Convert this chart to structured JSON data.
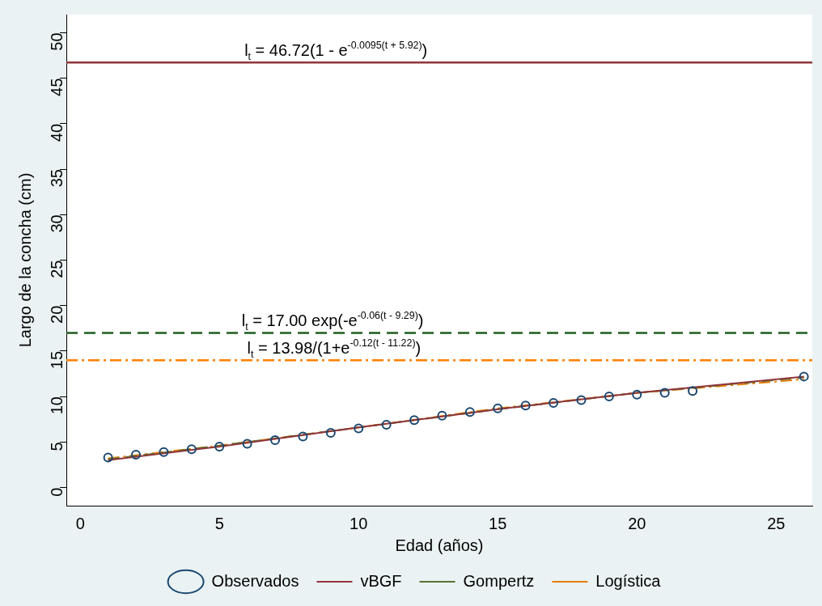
{
  "chart_data": {
    "type": "scatter",
    "xlabel": "Edad (años)",
    "ylabel": "Largo de la concha (cm)",
    "xlim": [
      -0.5,
      26.3
    ],
    "xticks": [
      0,
      5,
      10,
      15,
      20,
      25
    ],
    "ylim": [
      -2,
      52
    ],
    "yticks": [
      0,
      5,
      10,
      15,
      20,
      25,
      30,
      35,
      40,
      45,
      50
    ],
    "grid": false,
    "legend": "bottom",
    "series": [
      {
        "name": "Observados",
        "marker": "circle",
        "color": "#1a476f",
        "x": [
          1,
          2,
          3,
          4,
          5,
          6,
          7,
          8,
          9,
          10,
          11,
          12,
          13,
          14,
          15,
          16,
          17,
          18,
          19,
          20,
          21,
          22,
          26
        ],
        "values": [
          3.3,
          3.6,
          3.9,
          4.2,
          4.5,
          4.8,
          5.2,
          5.6,
          6.0,
          6.5,
          6.9,
          7.4,
          7.9,
          8.3,
          8.7,
          9.0,
          9.3,
          9.6,
          10.0,
          10.2,
          10.4,
          10.6,
          12.2
        ]
      },
      {
        "name": "vBGF",
        "type": "line",
        "marker": "none",
        "line_style": "solid",
        "color": "#90353b",
        "x": [
          1,
          5,
          10,
          15,
          20,
          26
        ],
        "values": [
          3.0,
          4.5,
          6.6,
          8.6,
          10.4,
          12.2
        ]
      },
      {
        "name": "Gompertz",
        "type": "line",
        "marker": "none",
        "line_style": "dashed",
        "color": "#55752f",
        "x": [
          1,
          5,
          10,
          15,
          20,
          26
        ],
        "values": [
          3.1,
          4.6,
          6.6,
          8.6,
          10.4,
          12.1
        ]
      },
      {
        "name": "Logística",
        "type": "line",
        "marker": "none",
        "line_style": "dashdot",
        "color": "#e37e00",
        "x": [
          1,
          5,
          10,
          15,
          20,
          26
        ],
        "values": [
          3.2,
          4.6,
          6.6,
          8.7,
          10.4,
          11.9
        ]
      }
    ],
    "ref_lines": [
      {
        "axis": "y",
        "value": 46.72,
        "color": "#90353b",
        "line_style": "solid"
      },
      {
        "axis": "y",
        "value": 17.0,
        "color": "#1f5c1f",
        "line_style": "dashed"
      },
      {
        "axis": "y",
        "value": 13.98,
        "color": "#ff7f00",
        "line_style": "dashdot"
      }
    ],
    "annotations": [
      {
        "text": "l$_{t}$ = 46.72(1 - e$^{-0.0095(t + 5.92)}$)",
        "x": 5.9,
        "y": 46.72
      },
      {
        "text": "l$_{t}$ = 17.00 exp(-e$^{-0.06(t - 9.29)}$)",
        "x": 5.8,
        "y": 17.0
      },
      {
        "text": "l$_{t}$ = 13.98/(1+e$^{-0.12(t - 11.22)}$)",
        "x": 6.0,
        "y": 13.98
      }
    ]
  }
}
